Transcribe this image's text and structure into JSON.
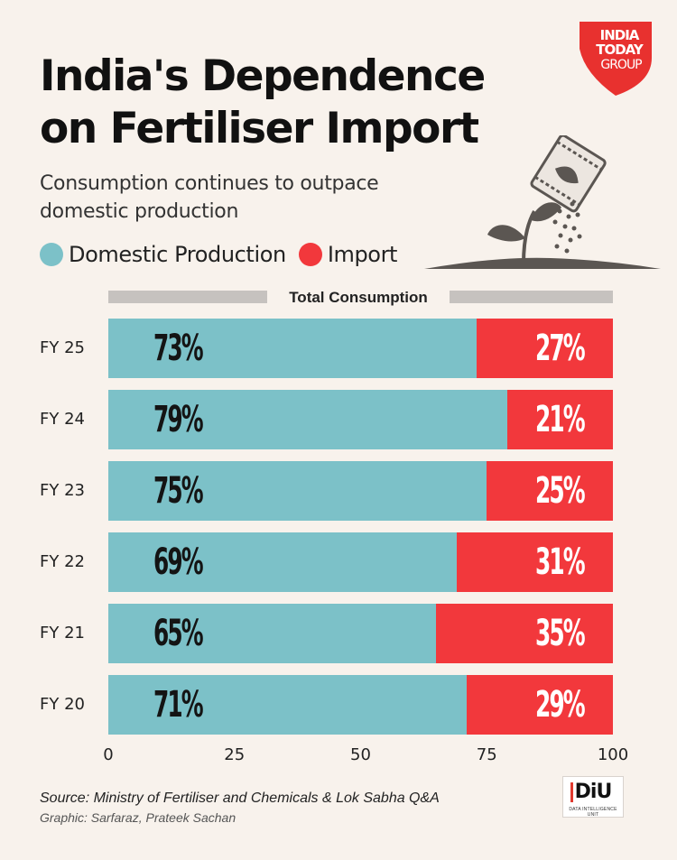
{
  "header": {
    "title_line1": "India's Dependence",
    "title_line2": "on Fertiliser Import",
    "subtitle": "Consumption continues to outpace domestic production"
  },
  "logo": {
    "lines": [
      "INDIA",
      "TODAY",
      "GROUP"
    ],
    "color": "#e8312f"
  },
  "illustration": "fertiliser-bag-sprinkling-seedling",
  "legend": [
    {
      "label": "Domestic Production",
      "color": "#7cc1c8"
    },
    {
      "label": "Import",
      "color": "#f2383c"
    }
  ],
  "total_label": "Total Consumption",
  "chart_data": {
    "type": "bar",
    "orientation": "horizontal",
    "stacked": true,
    "categories": [
      "FY 25",
      "FY 24",
      "FY 23",
      "FY 22",
      "FY 21",
      "FY 20"
    ],
    "series": [
      {
        "name": "Domestic Production",
        "values": [
          73,
          79,
          75,
          69,
          65,
          71
        ],
        "labels": [
          "73%",
          "79%",
          "75%",
          "69%",
          "65%",
          "71%"
        ],
        "color": "#7cc1c8"
      },
      {
        "name": "Import",
        "values": [
          27,
          21,
          25,
          31,
          35,
          29
        ],
        "labels": [
          "27%",
          "21%",
          "25%",
          "31%",
          "35%",
          "29%"
        ],
        "color": "#f2383c"
      }
    ],
    "xlim": [
      0,
      100
    ],
    "xticks": [
      "0",
      "25",
      "50",
      "75",
      "100"
    ],
    "grid": false,
    "legend_position": "top-left"
  },
  "footer": {
    "source": "Source: Ministry of Fertiliser and Chemicals & Lok Sabha Q&A",
    "credit": "Graphic: Sarfaraz, Prateek Sachan",
    "badge": "DiU",
    "badge_sub": "DATA INTELLIGENCE UNIT"
  }
}
